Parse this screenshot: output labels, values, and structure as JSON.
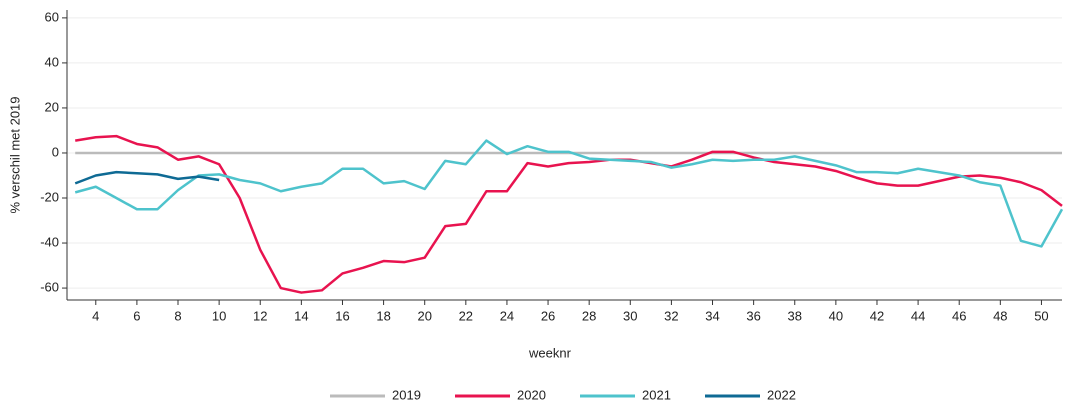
{
  "chart_data": {
    "type": "line",
    "x": [
      3,
      4,
      5,
      6,
      7,
      8,
      9,
      10,
      11,
      12,
      13,
      14,
      15,
      16,
      17,
      18,
      19,
      20,
      21,
      22,
      23,
      24,
      25,
      26,
      27,
      28,
      29,
      30,
      31,
      32,
      33,
      34,
      35,
      36,
      37,
      38,
      39,
      40,
      41,
      42,
      43,
      44,
      45,
      46,
      47,
      48,
      49,
      50,
      51
    ],
    "series": [
      {
        "name": "2019",
        "color": "#bbbbbb",
        "values": [
          0,
          0,
          0,
          0,
          0,
          0,
          0,
          0,
          0,
          0,
          0,
          0,
          0,
          0,
          0,
          0,
          0,
          0,
          0,
          0,
          0,
          0,
          0,
          0,
          0,
          0,
          0,
          0,
          0,
          0,
          0,
          0,
          0,
          0,
          0,
          0,
          0,
          0,
          0,
          0,
          0,
          0,
          0,
          0,
          0,
          0,
          0,
          0,
          0
        ]
      },
      {
        "name": "2020",
        "color": "#e8134f",
        "values": [
          5.5,
          7,
          7.5,
          4,
          2.5,
          -3,
          -1.5,
          -5,
          -20,
          -43,
          -60,
          -62,
          -61,
          -53.5,
          -51,
          -48,
          -48.5,
          -46.5,
          -32.5,
          -31.5,
          -17,
          -17,
          -4.5,
          -6,
          -4.5,
          -4,
          -3,
          -3,
          -4.5,
          -6,
          -3,
          0.5,
          0.5,
          -2,
          -4,
          -5,
          -6,
          -8,
          -11,
          -13.5,
          -14.5,
          -14.5,
          -12.5,
          -10.5,
          -10,
          -11,
          -13,
          -16.5,
          -23.5
        ]
      },
      {
        "name": "2021",
        "color": "#4ec3cc",
        "values": [
          -17.5,
          -15,
          -20,
          -25,
          -25,
          -16.5,
          -10,
          -9.5,
          -12,
          -13.5,
          -17,
          -15,
          -13.5,
          -7,
          -7,
          -13.5,
          -12.5,
          -16,
          -3.5,
          -5,
          5.5,
          -0.5,
          3,
          0.5,
          0.5,
          -2.5,
          -3,
          -3.5,
          -4,
          -6.5,
          -5,
          -3,
          -3.5,
          -3,
          -3,
          -1.5,
          -3.5,
          -5.5,
          -8.5,
          -8.5,
          -9,
          -7,
          -8.5,
          -10,
          -13,
          -14.5,
          -39,
          -41.5,
          -25
        ]
      },
      {
        "name": "2022",
        "color": "#0e6a94",
        "values": [
          -13.5,
          -10,
          -8.5,
          -9,
          -9.5,
          -11.5,
          -10.5,
          -12,
          null,
          null,
          null,
          null,
          null,
          null,
          null,
          null,
          null,
          null,
          null,
          null,
          null,
          null,
          null,
          null,
          null,
          null,
          null,
          null,
          null,
          null,
          null,
          null,
          null,
          null,
          null,
          null,
          null,
          null,
          null,
          null,
          null,
          null,
          null,
          null,
          null,
          null,
          null,
          null,
          null
        ]
      }
    ],
    "xlim": [
      2.6,
      51
    ],
    "xticks": [
      4,
      6,
      8,
      10,
      12,
      14,
      16,
      18,
      20,
      22,
      24,
      26,
      28,
      30,
      32,
      34,
      36,
      38,
      40,
      42,
      44,
      46,
      48,
      50
    ],
    "ylim": [
      -65.3,
      63.5
    ],
    "yticks": [
      -60,
      -40,
      -20,
      0,
      20,
      40,
      60
    ],
    "xlabel": "weeknr",
    "ylabel": "% verschil met 2019",
    "grid": true,
    "legend": "bottom"
  }
}
